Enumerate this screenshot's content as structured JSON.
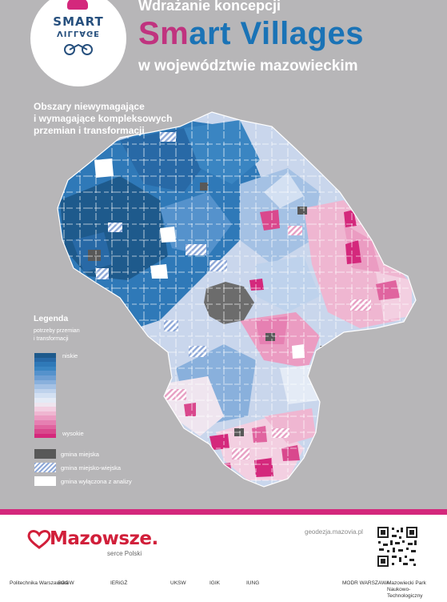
{
  "header": {
    "line1": "Wdrażanie koncepcji",
    "title_sm": "Sm",
    "title_rest": "art Villages",
    "line3": "w województwie mazowieckim",
    "logo_top": "SMART",
    "logo_bottom": "VILLAGE"
  },
  "map": {
    "subtitle_lines": [
      "Obszary niewymagające",
      "i wymagające kompleksowych",
      "przemian i transformacji"
    ]
  },
  "legend": {
    "title": "Legenda",
    "subtitle_lines": [
      "potrzeby przemian",
      "i transformacji"
    ],
    "low_label": "niskie",
    "high_label": "wysokie",
    "ramp_colors": [
      "#1e5a8c",
      "#2869a6",
      "#2f79b8",
      "#3a85c2",
      "#5592cc",
      "#6f9fd3",
      "#89b0dc",
      "#a4c1e4",
      "#bed2ec",
      "#d3e0f2",
      "#e4ebf6",
      "#efe5ef",
      "#f3cfe1",
      "#efb6d1",
      "#eb9cc2",
      "#e680b2",
      "#e0649f",
      "#d9488d",
      "#d4287c"
    ],
    "items": [
      {
        "label": "gmina miejska",
        "color": "#585858"
      },
      {
        "label": "gmina miejsko-wiejska"
      },
      {
        "label": "gmina wyłączona z analizy",
        "color": "#ffffff"
      }
    ]
  },
  "footer": {
    "brand": "Mazowsze.",
    "brand_sub": "serce Polski",
    "url": "geodezja.mazovia.pl",
    "partners": [
      "Politechnika Warszawska",
      "SGGW",
      "IERiGŻ",
      "UKSW",
      "IGIK",
      "IUNG",
      "MODR WARSZAWA",
      "Mazowiecki Park Naukowo-Technologiczny"
    ]
  },
  "colors": {
    "background": "#b7b6b8",
    "accent_pink": "#d4287c",
    "accent_blue": "#1a73b6",
    "urban": "#585858"
  }
}
